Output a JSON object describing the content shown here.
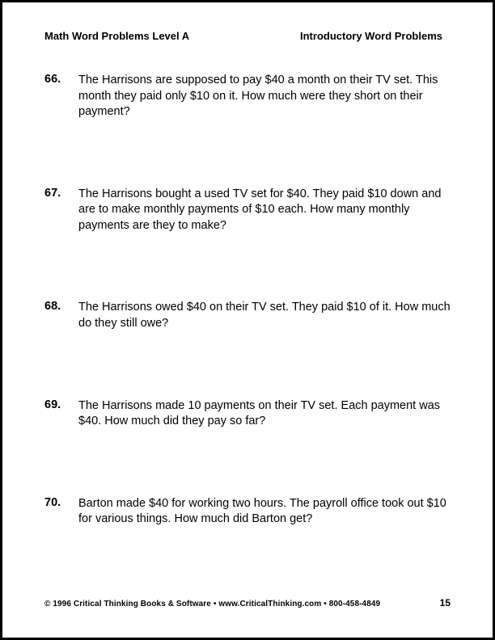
{
  "header": {
    "left": "Math Word Problems Level A",
    "right": "Introductory Word Problems"
  },
  "problems": [
    {
      "number": "66.",
      "text": "The Harrisons are supposed to pay $40 a month on their TV set. This month they paid only $10 on it. How much were they short on their payment?"
    },
    {
      "number": "67.",
      "text": "The Harrisons bought a used TV set for $40. They paid $10 down and are to make monthly payments of $10 each. How many monthly payments are they to make?"
    },
    {
      "number": "68.",
      "text": "The Harrisons owed $40 on their TV set. They paid $10 of it. How much do they still owe?"
    },
    {
      "number": "69.",
      "text": "The Harrisons made 10 payments on their TV set. Each payment was $40. How much did they pay so far?"
    },
    {
      "number": "70.",
      "text": "Barton made $40 for working two hours. The payroll office took out $10 for various things. How much did Barton get?"
    }
  ],
  "footer": {
    "copyright": "© 1996 Critical Thinking Books & Software • www.CriticalThinking.com • 800-458-4849",
    "page": "15"
  }
}
